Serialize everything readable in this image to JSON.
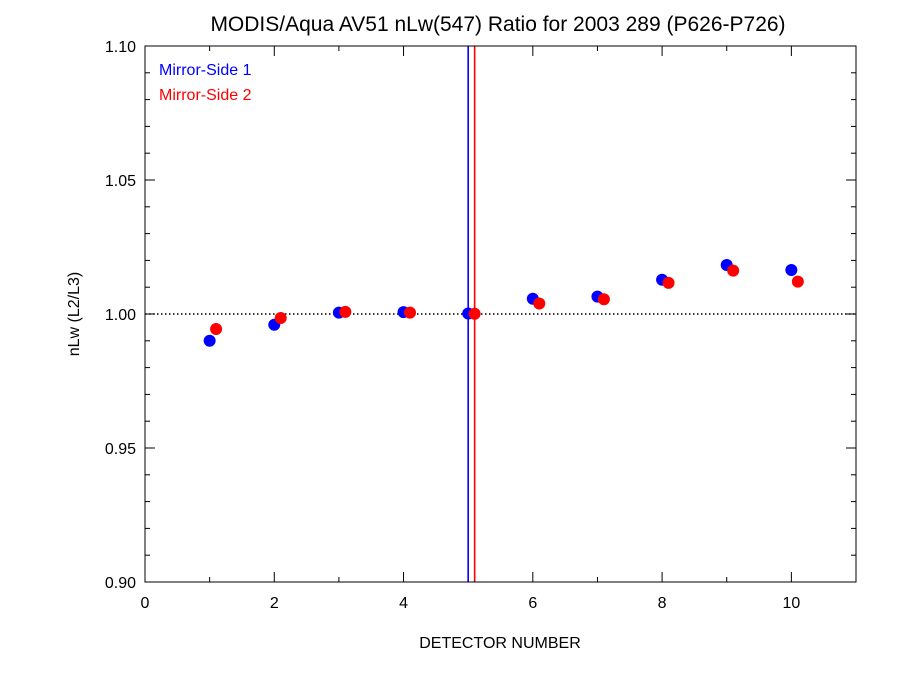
{
  "chart_data": {
    "type": "scatter",
    "title": "MODIS/Aqua AV51 nLw(547) Ratio for 2003 289 (P626-P726)",
    "xlabel": "DETECTOR NUMBER",
    "ylabel": "nLw (L2/L3)",
    "xlim": [
      0,
      11
    ],
    "ylim": [
      0.9,
      1.1
    ],
    "x_ticks": [
      0,
      2,
      4,
      6,
      8,
      10
    ],
    "x_tick_labels": [
      "0",
      "2",
      "4",
      "6",
      "8",
      "10"
    ],
    "y_ticks": [
      0.9,
      0.95,
      1.0,
      1.05,
      1.1
    ],
    "y_tick_labels": [
      "0.90",
      "0.95",
      "1.00",
      "1.05",
      "1.10"
    ],
    "reference_line": {
      "y": 1.0,
      "style": "dotted",
      "color": "#000000"
    },
    "vertical_lines": [
      {
        "x": 5.0,
        "color": "#0000ff"
      },
      {
        "x": 5.1,
        "color": "#ff0000"
      }
    ],
    "legend": {
      "placement": "top-left"
    },
    "grid": false,
    "series": [
      {
        "name": "Mirror-Side 1",
        "color": "#0000ff",
        "x": [
          1,
          2,
          3,
          4,
          5,
          6,
          7,
          8,
          9,
          10
        ],
        "y": [
          0.99,
          0.996,
          1.0005,
          1.0007,
          1.0002,
          1.0057,
          1.0065,
          1.0128,
          1.0183,
          1.0164
        ]
      },
      {
        "name": "Mirror-Side 2",
        "color": "#ff0000",
        "x": [
          1.1,
          2.1,
          3.1,
          4.1,
          5.1,
          6.1,
          7.1,
          8.1,
          9.1,
          10.1
        ],
        "y": [
          0.9944,
          0.9985,
          1.0008,
          1.0005,
          1.0001,
          1.0039,
          1.0055,
          1.0116,
          1.0162,
          1.0121
        ]
      }
    ]
  }
}
